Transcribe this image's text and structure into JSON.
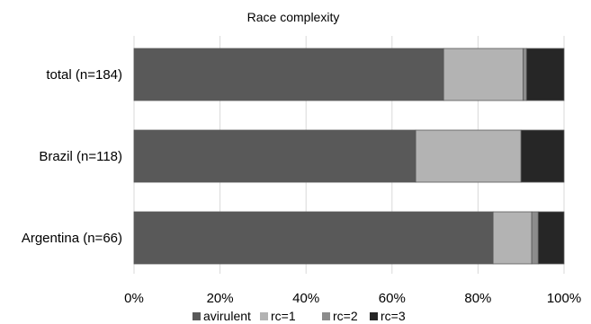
{
  "chart_data": {
    "type": "bar",
    "orientation": "horizontal",
    "stacked": true,
    "normalized": true,
    "title": "Race complexity",
    "xlabel": "",
    "ylabel": "",
    "categories": [
      "total (n=184)",
      "Brazil (n=118)",
      "Argentina (n=66)"
    ],
    "series": [
      {
        "name": "avirulent",
        "values": [
          72,
          65.5,
          83.5
        ],
        "color": "#595959"
      },
      {
        "name": "rc=1",
        "values": [
          18.5,
          24.5,
          9
        ],
        "color": "#b3b3b3"
      },
      {
        "name": "rc=2",
        "values": [
          0.8,
          0,
          1.5
        ],
        "color": "#8c8c8c"
      },
      {
        "name": "rc=3",
        "values": [
          8.7,
          10,
          6
        ],
        "color": "#262626"
      }
    ],
    "xlim": [
      0,
      100
    ],
    "xticks": [
      0,
      20,
      40,
      60,
      80,
      100
    ],
    "xtick_labels": [
      "0%",
      "20%",
      "40%",
      "60%",
      "80%",
      "100%"
    ],
    "grid": true,
    "legend_position": "bottom"
  }
}
